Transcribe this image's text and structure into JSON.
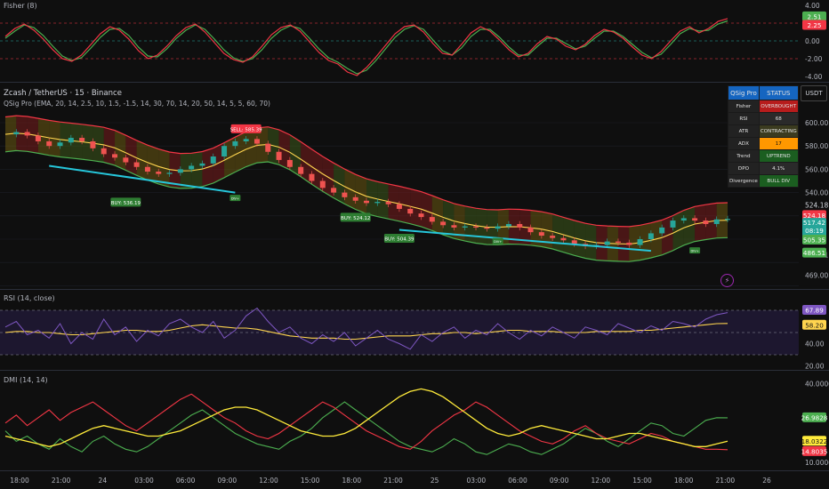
{
  "colors": {
    "bull": "#26a69a",
    "bear": "#ef5350",
    "band_upper": "#f23645",
    "band_lower": "#4caf50",
    "ema": "#ffd54f",
    "trend": "#26c6da",
    "rsi": "#7e57c2",
    "rsi_ma": "#ffd54f",
    "plus_di": "#4caf50",
    "minus_di": "#f23645",
    "adx": "#ffeb3b",
    "fisher": "#f23645",
    "fisher_sig": "#4caf50"
  },
  "fisher": {
    "title": "Fisher (8)",
    "axis": [
      "4.00",
      "2.00",
      "0.00",
      "-2.00",
      "-4.00"
    ],
    "tags": [
      "2.51",
      "2.25"
    ]
  },
  "main": {
    "symbol_title": "Zcash / TetherUS · 15 · Binance",
    "indicator_title": "QSig Pro (EMA, 20, 14, 2.5, 10, 1.5, -1.5, 14, 30, 70, 14, 20, 50, 14, 5, 5, 60, 70)",
    "currency": "USDT",
    "axis": [
      "600.00",
      "580.00",
      "560.00",
      "540.00",
      "486.51",
      "469.00"
    ],
    "price_tags": {
      "upper": "524.18",
      "upper_tag": "524.18",
      "last": "517.42",
      "countdown": "08:19",
      "lower": "505.35",
      "green": "486.51"
    }
  },
  "signals": [
    {
      "label": "SELL: 585.39",
      "kind": "sell"
    },
    {
      "label": "BUY: 536.19",
      "kind": "buy"
    },
    {
      "label": "BUY: 524.12",
      "kind": "buy"
    },
    {
      "label": "BUY: 504.39",
      "kind": "buy"
    }
  ],
  "mini_marks": [
    "DIV+",
    "DIV+",
    "DIV+"
  ],
  "status_table": {
    "header": [
      "QSig Pro",
      "STATUS"
    ],
    "rows": [
      {
        "k": "Fisher",
        "v": "OVERBOUGHT",
        "bg": "#b71c1c"
      },
      {
        "k": "RSI",
        "v": "68",
        "bg": "#2a2a2a"
      },
      {
        "k": "ATR",
        "v": "CONTRACTING",
        "bg": "#3b3b1f"
      },
      {
        "k": "ADX",
        "v": "17",
        "bg": "#ff9800"
      },
      {
        "k": "Trend",
        "v": "UPTREND",
        "bg": "#1b5e20"
      },
      {
        "k": "DPO",
        "v": "4.1%",
        "bg": "#2a2a2a"
      },
      {
        "k": "Divergence",
        "v": "BULL DIV",
        "bg": "#1b5e20"
      }
    ]
  },
  "rsi": {
    "title": "RSI (14, close)",
    "axis": [
      "40.00",
      "20.00"
    ],
    "tags": [
      "67.89",
      "58.20"
    ]
  },
  "dmi": {
    "title": "DMI (14, 14)",
    "axis": [
      "40.0000",
      "10.0000"
    ],
    "tags": [
      "26.9828",
      "18.0322",
      "14.8035"
    ]
  },
  "time_axis": [
    "18:00",
    "21:00",
    "24",
    "03:00",
    "06:00",
    "09:00",
    "12:00",
    "15:00",
    "18:00",
    "21:00",
    "25",
    "03:00",
    "06:00",
    "09:00",
    "12:00",
    "15:00",
    "18:00",
    "21:00",
    "26"
  ],
  "chart_data": [
    {
      "type": "line",
      "title": "Fisher (8)",
      "series": [
        {
          "values": [
            0.5,
            1.4,
            1.9,
            1.2,
            0.2,
            -1.0,
            -2.0,
            -2.3,
            -1.6,
            -0.4,
            0.8,
            1.6,
            1.2,
            0.2,
            -1.1,
            -2.0,
            -1.6,
            -0.6,
            0.6,
            1.5,
            1.9,
            1.0,
            -0.2,
            -1.4,
            -2.1,
            -2.4,
            -1.8,
            -0.6,
            0.7,
            1.5,
            1.8,
            1.1,
            -0.1,
            -1.3,
            -2.2,
            -2.6,
            -3.5,
            -3.9,
            -3.0,
            -1.8,
            -0.5,
            0.8,
            1.6,
            1.8,
            1.0,
            -0.3,
            -1.4,
            -1.6,
            -0.4,
            0.9,
            1.6,
            1.1,
            0.1,
            -1.0,
            -1.8,
            -1.4,
            -0.3,
            0.5,
            0.2,
            -0.6,
            -1.0,
            -0.4,
            0.6,
            1.3,
            1.0,
            0.3,
            -0.7,
            -1.6,
            -2.0,
            -1.2,
            0.0,
            1.1,
            1.6,
            0.9,
            1.4,
            2.2,
            2.51
          ]
        },
        {
          "values": [
            0.3,
            1.1,
            1.8,
            1.5,
            0.6,
            -0.6,
            -1.7,
            -2.2,
            -1.9,
            -0.8,
            0.4,
            1.3,
            1.4,
            0.6,
            -0.7,
            -1.7,
            -1.8,
            -0.9,
            0.3,
            1.2,
            1.8,
            1.3,
            0.2,
            -1.0,
            -1.9,
            -2.3,
            -2.0,
            -1.0,
            0.3,
            1.2,
            1.7,
            1.4,
            0.3,
            -0.9,
            -1.9,
            -2.4,
            -3.1,
            -3.7,
            -3.3,
            -2.2,
            -0.9,
            0.4,
            1.3,
            1.7,
            1.3,
            0.1,
            -1.1,
            -1.6,
            -0.8,
            0.5,
            1.3,
            1.3,
            0.4,
            -0.7,
            -1.6,
            -1.6,
            -0.6,
            0.3,
            0.3,
            -0.3,
            -0.9,
            -0.6,
            0.3,
            1.1,
            1.1,
            0.5,
            -0.4,
            -1.3,
            -1.9,
            -1.5,
            -0.4,
            0.8,
            1.4,
            1.1,
            1.2,
            1.9,
            2.25
          ]
        }
      ]
    },
    {
      "type": "line",
      "title": "Zcash / TetherUS · 15 · Binance",
      "series": [
        {
          "values": [
            590,
            592,
            589,
            584,
            580,
            583,
            587,
            584,
            578,
            573,
            570,
            566,
            562,
            558,
            556,
            557,
            560,
            563,
            565,
            571,
            580,
            584,
            586,
            582,
            575,
            568,
            562,
            556,
            550,
            544,
            540,
            536,
            533,
            531,
            532,
            530,
            526,
            522,
            519,
            515,
            512,
            510,
            511,
            510,
            509,
            511,
            513,
            510,
            506,
            503,
            501,
            499,
            496,
            494,
            495,
            498,
            497,
            495,
            500,
            505,
            510,
            516,
            518,
            516,
            513,
            517,
            517.42
          ]
        }
      ]
    },
    {
      "type": "line",
      "title": "RSI (14, close)",
      "ylim": [
        20,
        80
      ],
      "series": [
        {
          "values": [
            55,
            60,
            48,
            52,
            45,
            58,
            40,
            50,
            44,
            62,
            48,
            55,
            42,
            52,
            47,
            58,
            62,
            55,
            50,
            60,
            45,
            52,
            65,
            72,
            60,
            50,
            55,
            45,
            40,
            48,
            42,
            50,
            38,
            45,
            52,
            44,
            40,
            35,
            48,
            42,
            50,
            55,
            45,
            52,
            48,
            58,
            50,
            44,
            52,
            47,
            55,
            50,
            45,
            55,
            52,
            48,
            58,
            54,
            50,
            56,
            52,
            60,
            58,
            55,
            62,
            66,
            67.89
          ]
        },
        {
          "values": [
            50,
            51,
            51,
            50,
            50,
            49,
            48,
            48,
            49,
            50,
            51,
            52,
            52,
            51,
            51,
            52,
            54,
            56,
            57,
            56,
            55,
            54,
            54,
            53,
            51,
            49,
            47,
            46,
            45,
            45,
            45,
            44,
            44,
            45,
            46,
            47,
            47,
            47,
            48,
            49,
            49,
            50,
            50,
            49,
            50,
            51,
            52,
            52,
            51,
            51,
            51,
            50,
            50,
            50,
            51,
            51,
            51,
            51,
            52,
            52,
            53,
            54,
            55,
            56,
            57,
            58,
            58.2
          ]
        }
      ]
    },
    {
      "type": "line",
      "title": "DMI (14, 14)",
      "ylim": [
        10,
        40
      ],
      "series": [
        {
          "values": [
            22,
            18,
            20,
            17,
            15,
            19,
            16,
            14,
            18,
            20,
            17,
            15,
            14,
            16,
            19,
            22,
            25,
            28,
            30,
            27,
            24,
            21,
            19,
            17,
            16,
            15,
            18,
            20,
            23,
            27,
            30,
            33,
            30,
            27,
            24,
            21,
            18,
            16,
            15,
            14,
            16,
            19,
            17,
            14,
            13,
            15,
            17,
            16,
            14,
            13,
            15,
            17,
            20,
            23,
            21,
            18,
            16,
            19,
            22,
            25,
            24,
            21,
            20,
            23,
            26,
            27,
            26.98
          ]
        },
        {
          "values": [
            25,
            28,
            24,
            27,
            30,
            26,
            29,
            31,
            33,
            30,
            27,
            24,
            22,
            25,
            28,
            31,
            34,
            36,
            33,
            30,
            27,
            25,
            22,
            20,
            19,
            21,
            24,
            27,
            30,
            33,
            31,
            28,
            25,
            22,
            20,
            18,
            16,
            15,
            18,
            22,
            25,
            28,
            30,
            33,
            31,
            28,
            25,
            22,
            20,
            18,
            17,
            19,
            22,
            24,
            21,
            19,
            18,
            17,
            19,
            21,
            20,
            18,
            17,
            16,
            15,
            15,
            14.8
          ]
        },
        {
          "values": [
            20,
            19,
            18,
            17,
            16,
            17,
            19,
            21,
            23,
            24,
            23,
            22,
            21,
            20,
            20,
            21,
            22,
            24,
            26,
            28,
            30,
            31,
            31,
            30,
            28,
            26,
            24,
            22,
            21,
            20,
            20,
            21,
            23,
            26,
            29,
            32,
            35,
            37,
            38,
            37,
            35,
            32,
            29,
            26,
            23,
            21,
            20,
            21,
            23,
            24,
            23,
            22,
            21,
            20,
            19,
            19,
            20,
            21,
            21,
            20,
            19,
            18,
            17,
            16,
            16,
            17,
            18.03
          ]
        }
      ]
    }
  ]
}
